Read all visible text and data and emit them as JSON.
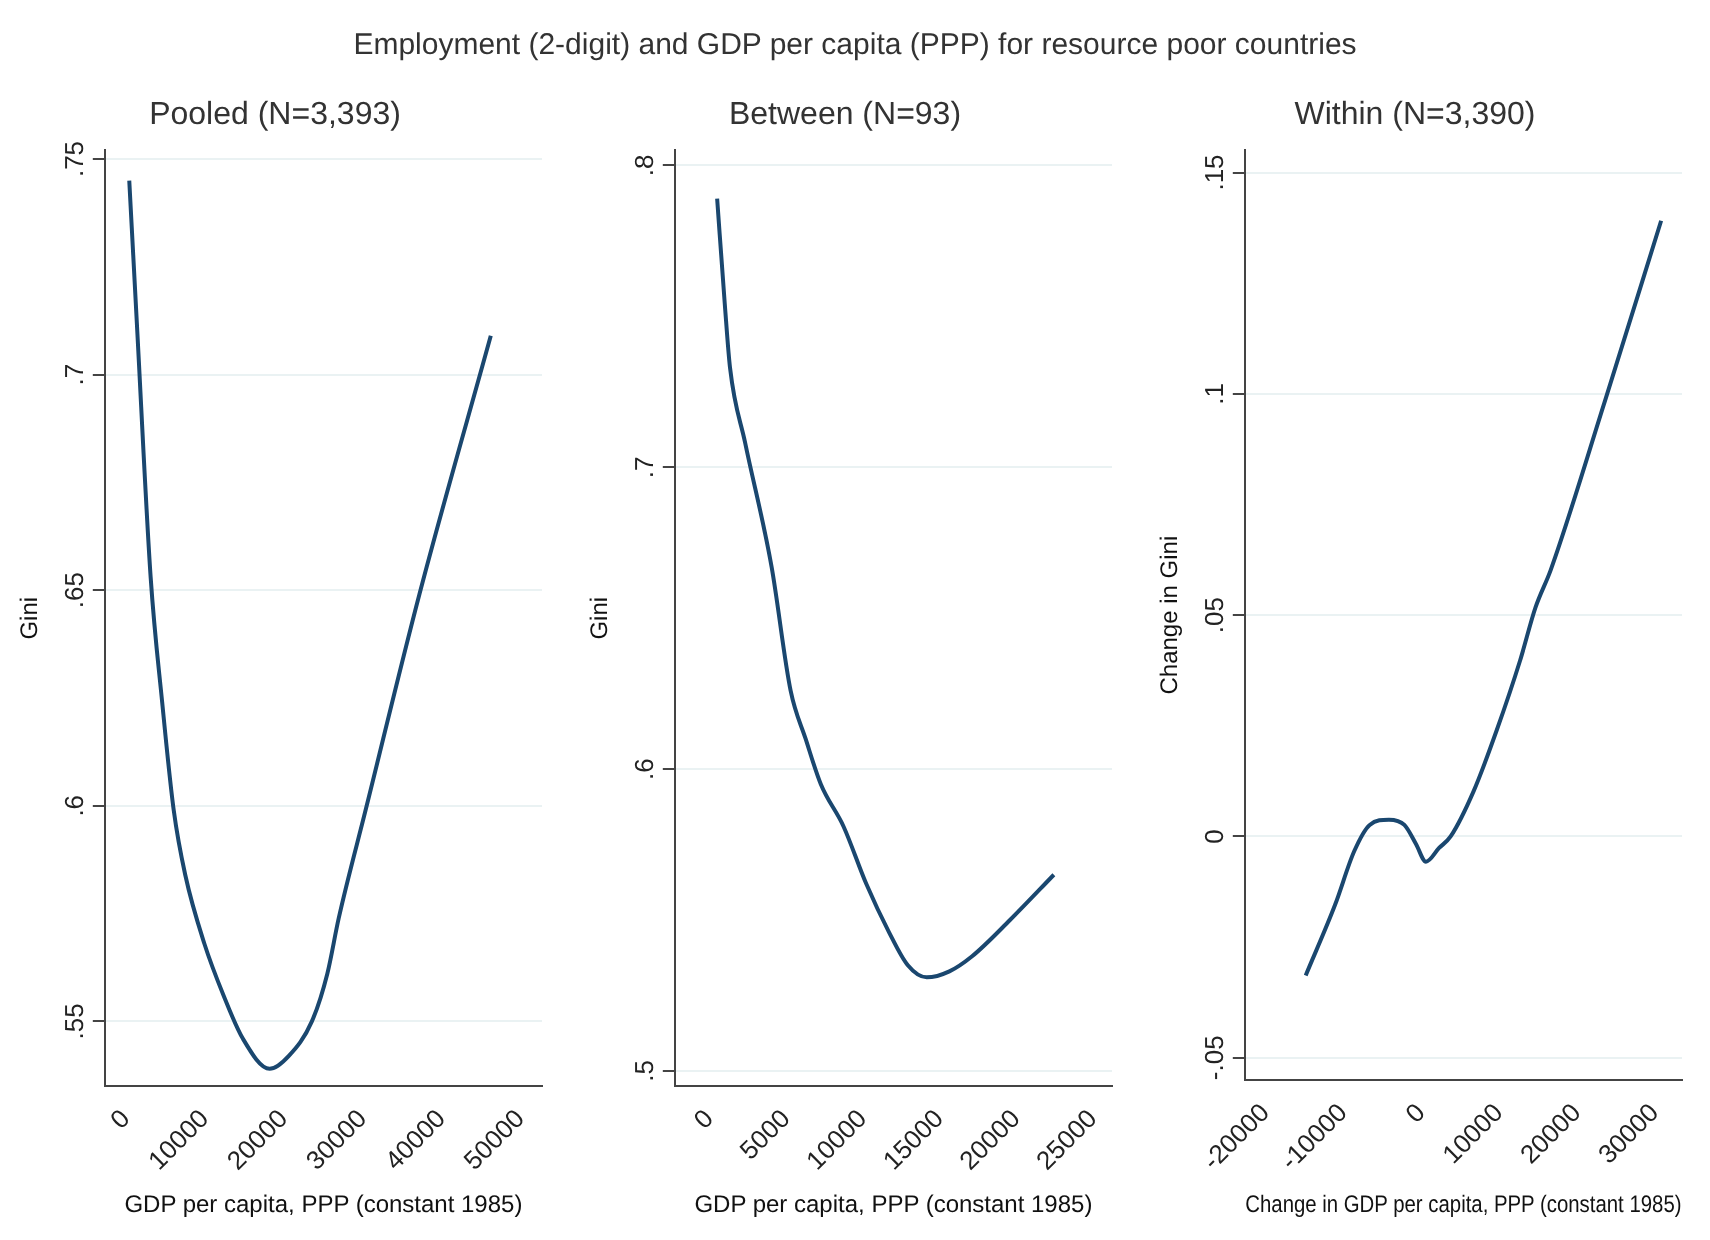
{
  "chart_data": [
    {
      "type": "other",
      "title": "Employment (2-digit) and GDP per capita (PPP) for resource poor countries"
    },
    {
      "type": "line",
      "title": "Pooled (N=3,393)",
      "xlabel": "GDP per capita, PPP (constant 1985)",
      "ylabel": "Gini",
      "color": "#1a476f",
      "grid": "y",
      "marker": "none",
      "x": [
        400,
        1360,
        3110,
        4570,
        6030,
        7490,
        9920,
        12350,
        14790,
        18190,
        20620,
        23540,
        25490,
        26950,
        30350,
        37160,
        46210
      ],
      "values": [
        0.745,
        0.712,
        0.653,
        0.624,
        0.599,
        0.584,
        0.568,
        0.556,
        0.546,
        0.539,
        0.542,
        0.55,
        0.561,
        0.574,
        0.599,
        0.649,
        0.709
      ],
      "xlim": [
        -2700,
        52700
      ],
      "xticks": [
        0,
        10000,
        20000,
        30000,
        40000,
        50000
      ],
      "ylim": [
        0.535,
        0.752
      ],
      "yticks": [
        {
          "value": 0.55,
          "label": ".55"
        },
        {
          "value": 0.6,
          "label": ".6"
        },
        {
          "value": 0.65,
          "label": ".65"
        },
        {
          "value": 0.7,
          "label": ".7"
        },
        {
          "value": 0.75,
          "label": ".75"
        }
      ]
    },
    {
      "type": "line",
      "title": "Between (N=93)",
      "xlabel": "GDP per capita, PPP (constant 1985)",
      "ylabel": "Gini",
      "color": "#1a476f",
      "grid": "y",
      "marker": "none",
      "x": [
        490,
        990,
        1330,
        2320,
        4040,
        5280,
        6260,
        7250,
        8730,
        10210,
        11690,
        12920,
        14150,
        15630,
        17110,
        19580,
        22440
      ],
      "values": [
        0.789,
        0.754,
        0.733,
        0.708,
        0.667,
        0.626,
        0.61,
        0.595,
        0.581,
        0.562,
        0.546,
        0.535,
        0.531,
        0.533,
        0.538,
        0.55,
        0.565
      ],
      "xlim": [
        -2270,
        26230
      ],
      "xticks": [
        0,
        5000,
        10000,
        15000,
        20000,
        25000
      ],
      "ylim": [
        0.495,
        0.805
      ],
      "yticks": [
        {
          "value": 0.5,
          "label": ".5"
        },
        {
          "value": 0.6,
          "label": ".6"
        },
        {
          "value": 0.7,
          "label": ".7"
        },
        {
          "value": 0.8,
          "label": ".8"
        }
      ]
    },
    {
      "type": "line",
      "title": "Within (N=3,390)",
      "xlabel": "Change in GDP per capita, PPP (constant 1985)",
      "ylabel": "Change in Gini",
      "color": "#1a476f",
      "grid": "y",
      "marker": "none",
      "x": [
        -14850,
        -11090,
        -8610,
        -6630,
        -4160,
        -2180,
        -690,
        590,
        2280,
        3760,
        6730,
        9700,
        12670,
        14650,
        16630,
        23560,
        30790
      ],
      "values": [
        -0.0314,
        -0.0155,
        -0.0033,
        0.0026,
        0.0038,
        0.0026,
        -0.0017,
        -0.0057,
        -0.0026,
        0,
        0.0103,
        0.0241,
        0.0397,
        0.0517,
        0.0603,
        0.0983,
        0.1391
      ],
      "xlim": [
        -22670,
        33470
      ],
      "xticks": [
        -20000,
        -10000,
        0,
        10000,
        20000,
        30000
      ],
      "ylim": [
        -0.055,
        0.155
      ],
      "yticks": [
        {
          "value": -0.05,
          "label": "-.05"
        },
        0,
        {
          "value": 0.05,
          "label": ".05"
        },
        {
          "value": 0.1,
          "label": ".1"
        },
        {
          "value": 0.15,
          "label": ".15"
        }
      ]
    }
  ]
}
